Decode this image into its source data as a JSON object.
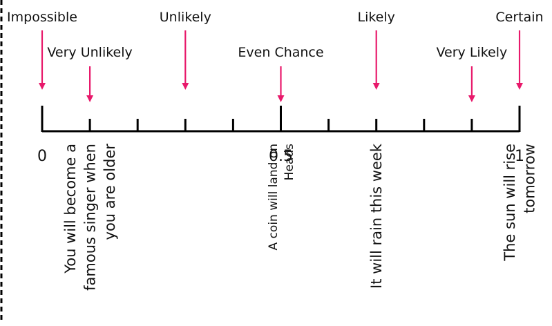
{
  "diagram": {
    "colors": {
      "arrow": "#e8196b",
      "line": "#000000",
      "text": "#111111",
      "border": "#000000"
    },
    "labels": [
      {
        "text": "Impossible",
        "value": 0.0,
        "row": "top"
      },
      {
        "text": "Very Unlikely",
        "value": 0.1,
        "row": "mid"
      },
      {
        "text": "Unlikely",
        "value": 0.3,
        "row": "top"
      },
      {
        "text": "Even Chance",
        "value": 0.5,
        "row": "mid"
      },
      {
        "text": "Likely",
        "value": 0.7,
        "row": "top"
      },
      {
        "text": "Very Likely",
        "value": 0.9,
        "row": "mid"
      },
      {
        "text": "Certain",
        "value": 1.0,
        "row": "top"
      }
    ],
    "axis": {
      "min": 0,
      "max": 1,
      "tick_values": [
        0,
        0.1,
        0.2,
        0.3,
        0.4,
        0.5,
        0.6,
        0.7,
        0.8,
        0.9,
        1
      ],
      "number_labels": [
        {
          "text": "0",
          "value": 0
        },
        {
          "text": "0.5",
          "value": 0.5
        },
        {
          "text": "1",
          "value": 1
        }
      ]
    },
    "events": [
      {
        "lines": [
          "You will become a",
          "famous singer when",
          "you are older"
        ],
        "value": 0.1,
        "size": "large"
      },
      {
        "lines": [
          "A coin will land on",
          "Heads"
        ],
        "value": 0.5,
        "size": "small"
      },
      {
        "lines": [
          "It will rain this week"
        ],
        "value": 0.7,
        "size": "large"
      },
      {
        "lines": [
          "The sun will rise",
          "tomorrow"
        ],
        "value": 1.0,
        "size": "large"
      }
    ]
  }
}
